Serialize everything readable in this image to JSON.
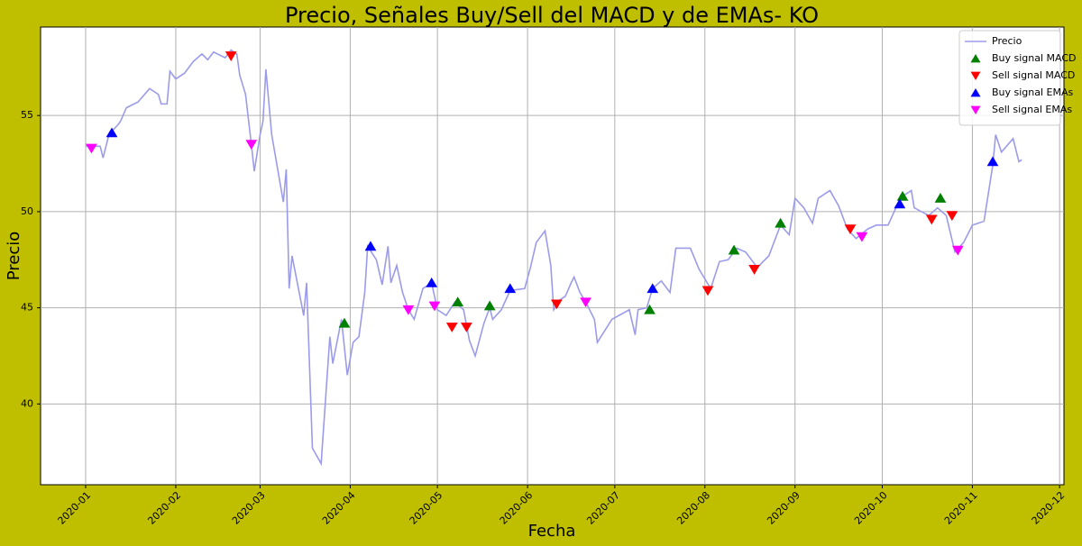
{
  "chart_data": {
    "type": "line",
    "title": "Precio, Señales Buy/Sell del MACD y de EMAs- KO",
    "xlabel": "Fecha",
    "ylabel": "Precio",
    "xlim": [
      -15.5,
      336.5
    ],
    "ylim": [
      35.8,
      59.6
    ],
    "xticks": [
      {
        "value": 0,
        "label": "2020-01"
      },
      {
        "value": 31,
        "label": "2020-02"
      },
      {
        "value": 60,
        "label": "2020-03"
      },
      {
        "value": 91,
        "label": "2020-04"
      },
      {
        "value": 121,
        "label": "2020-05"
      },
      {
        "value": 152,
        "label": "2020-06"
      },
      {
        "value": 182,
        "label": "2020-07"
      },
      {
        "value": 213,
        "label": "2020-08"
      },
      {
        "value": 244,
        "label": "2020-09"
      },
      {
        "value": 274,
        "label": "2020-10"
      },
      {
        "value": 305,
        "label": "2020-11"
      },
      {
        "value": 335,
        "label": "2020-12"
      }
    ],
    "yticks": [
      40,
      45,
      50,
      55
    ],
    "grid": true,
    "legend": "upper right",
    "series": [
      {
        "name": "Precio",
        "color": "#9b9bea",
        "x": [
          0,
          5,
          6,
          8,
          11,
          12,
          14,
          18,
          22,
          25,
          26,
          28,
          29,
          31,
          34,
          37,
          40,
          42,
          44,
          48,
          50,
          52,
          53,
          55,
          57,
          58,
          60,
          61,
          62,
          64,
          68,
          69,
          70,
          71,
          75,
          76,
          78,
          81,
          84,
          85,
          88,
          90,
          92,
          94,
          96,
          97,
          100,
          102,
          104,
          105,
          107,
          109,
          111,
          113,
          116,
          119,
          121,
          124,
          127,
          130,
          132,
          134,
          137,
          139,
          140,
          143,
          146,
          151,
          153,
          155,
          158,
          160,
          161,
          163,
          165,
          167,
          168,
          170,
          172,
          175,
          176,
          181,
          187,
          189,
          190,
          193,
          195,
          198,
          201,
          203,
          208,
          211,
          215,
          218,
          221,
          224,
          227,
          231,
          235,
          239,
          242,
          244,
          247,
          250,
          252,
          256,
          259,
          262,
          265,
          269,
          272,
          276,
          279,
          281,
          284,
          285,
          290,
          293,
          296,
          299,
          302,
          305,
          309,
          312,
          313,
          315,
          319,
          321,
          322
        ],
        "values": [
          53.4,
          53.4,
          52.8,
          54.0,
          54.5,
          54.7,
          55.4,
          55.7,
          56.4,
          56.1,
          55.6,
          55.6,
          57.3,
          56.9,
          57.2,
          57.8,
          58.2,
          57.9,
          58.3,
          58.0,
          58.4,
          58.2,
          57.1,
          56.1,
          53.5,
          52.1,
          54.0,
          54.7,
          57.4,
          54.0,
          50.5,
          52.2,
          46.0,
          47.7,
          44.6,
          46.3,
          37.7,
          36.9,
          43.5,
          42.1,
          44.4,
          41.5,
          43.2,
          43.5,
          45.8,
          48.2,
          47.5,
          46.2,
          48.2,
          46.3,
          47.2,
          45.8,
          44.9,
          44.4,
          46.0,
          46.3,
          44.9,
          44.6,
          45.3,
          44.9,
          43.3,
          42.5,
          44.2,
          45.0,
          44.4,
          44.9,
          45.9,
          46.0,
          47.1,
          48.4,
          49.0,
          47.2,
          44.9,
          45.4,
          45.6,
          46.3,
          46.6,
          45.8,
          45.3,
          44.4,
          43.2,
          44.4,
          44.9,
          43.6,
          44.9,
          45.0,
          46.0,
          46.4,
          45.8,
          48.1,
          48.1,
          47.0,
          46.0,
          47.4,
          47.5,
          48.1,
          47.9,
          47.1,
          47.7,
          49.3,
          48.8,
          50.7,
          50.2,
          49.4,
          50.7,
          51.1,
          50.3,
          49.1,
          48.6,
          49.1,
          49.3,
          49.3,
          50.3,
          50.8,
          51.1,
          50.2,
          49.8,
          50.2,
          49.8,
          47.9,
          48.4,
          49.3,
          49.5,
          52.4,
          54.0,
          53.1,
          53.8,
          52.6,
          52.7
        ]
      },
      {
        "name": "Buy signal MACD",
        "color": "green",
        "marker": "^",
        "x": [
          89,
          128,
          139,
          194,
          223,
          239,
          281,
          294
        ],
        "values": [
          44.2,
          45.3,
          45.1,
          44.9,
          48.0,
          49.4,
          50.8,
          50.7
        ]
      },
      {
        "name": "Sell signal MACD",
        "color": "red",
        "marker": "v",
        "x": [
          50,
          126,
          131,
          162,
          214,
          230,
          263,
          291,
          298
        ],
        "values": [
          58.1,
          44.0,
          44.0,
          45.2,
          45.9,
          47.0,
          49.1,
          49.6,
          49.8
        ]
      },
      {
        "name": "Buy signal EMAs",
        "color": "blue",
        "marker": "^",
        "x": [
          9,
          98,
          119,
          146,
          195,
          280,
          312
        ],
        "values": [
          54.1,
          48.2,
          46.3,
          46.0,
          46.0,
          50.4,
          52.6
        ]
      },
      {
        "name": "Sell signal EMAs",
        "color": "magenta",
        "marker": "v",
        "x": [
          2,
          57,
          111,
          120,
          172,
          267,
          300
        ],
        "values": [
          53.3,
          53.5,
          44.9,
          45.1,
          45.3,
          48.7,
          48.0
        ]
      }
    ]
  }
}
